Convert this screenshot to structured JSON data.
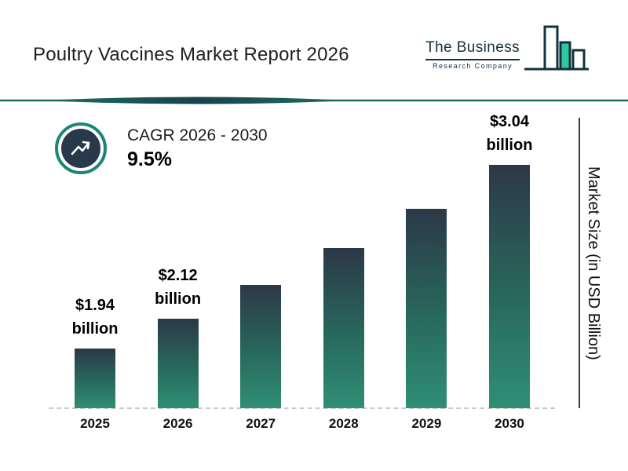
{
  "header": {
    "title": "Poultry Vaccines Market Report 2026",
    "logo": {
      "line1": "The Business",
      "line2": "Research Company"
    }
  },
  "cagr": {
    "label": "CAGR 2026 - 2030",
    "value": "9.5%"
  },
  "chart_data": {
    "type": "bar",
    "title": "Poultry Vaccines Market Report 2026",
    "categories": [
      "2025",
      "2026",
      "2027",
      "2028",
      "2029",
      "2030"
    ],
    "values": [
      1.94,
      2.12,
      2.32,
      2.54,
      2.78,
      3.04
    ],
    "value_labels": [
      "$1.94 billion",
      "$2.12 billion",
      "",
      "",
      "",
      "$3.04 billion"
    ],
    "xlabel": "",
    "ylabel": "Market Size (in USD Billion)",
    "ylim": [
      1.6,
      3.2
    ],
    "grid": "dashed-baseline-only",
    "legend": "none"
  },
  "colors": {
    "accent": "#1f8573",
    "bar-top": "#2c3847",
    "bar-bottom": "#2f8f74",
    "divider-dark": "#16444a",
    "divider-teal": "#1e6f63"
  }
}
